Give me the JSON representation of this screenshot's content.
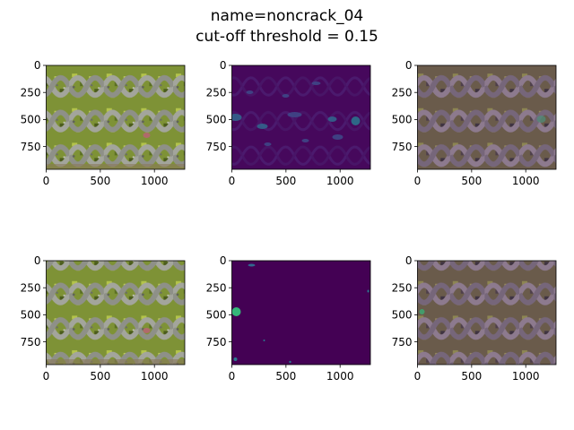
{
  "figure": {
    "title_line1": "name=noncrack_04",
    "title_line2": "cut-off threshold = 0.15"
  },
  "chart_data": [
    {
      "type": "image",
      "panel": "top-left",
      "content": "original paving photo",
      "xticks": [
        0,
        500,
        1000
      ],
      "yticks": [
        0,
        250,
        500,
        750
      ],
      "xlim": [
        0,
        1280
      ],
      "ylim": [
        960,
        0
      ]
    },
    {
      "type": "heatmap",
      "panel": "top-middle",
      "content": "probability map",
      "colormap": "viridis",
      "xticks": [
        0,
        500,
        1000
      ],
      "yticks": [
        0,
        250,
        500,
        750
      ],
      "xlim": [
        0,
        1280
      ],
      "ylim": [
        960,
        0
      ]
    },
    {
      "type": "image",
      "panel": "top-right",
      "content": "overlay",
      "xticks": [
        0,
        500,
        1000
      ],
      "yticks": [
        0,
        250,
        500,
        750
      ],
      "xlim": [
        0,
        1280
      ],
      "ylim": [
        960,
        0
      ]
    },
    {
      "type": "image",
      "panel": "bottom-left",
      "content": "original paving photo",
      "xticks": [
        0,
        500,
        1000
      ],
      "yticks": [
        0,
        250,
        500,
        750
      ],
      "xlim": [
        0,
        1280
      ],
      "ylim": [
        960,
        0
      ]
    },
    {
      "type": "heatmap",
      "panel": "bottom-middle",
      "content": "thresholded mask",
      "colormap": "viridis",
      "xticks": [
        0,
        500,
        1000
      ],
      "yticks": [
        0,
        250,
        500,
        750
      ],
      "xlim": [
        0,
        1280
      ],
      "ylim": [
        960,
        0
      ]
    },
    {
      "type": "image",
      "panel": "bottom-right",
      "content": "thresholded overlay",
      "xticks": [
        0,
        500,
        1000
      ],
      "yticks": [
        0,
        250,
        500,
        750
      ],
      "xlim": [
        0,
        1280
      ],
      "ylim": [
        960,
        0
      ]
    }
  ],
  "colors": {
    "grass": "#6e8a2c",
    "stone": "#8d8f86",
    "viridis_dark": "#440154",
    "viridis_mid": "#31688e",
    "viridis_bright": "#35b779",
    "overlay_tint": "#6b4d6e"
  }
}
